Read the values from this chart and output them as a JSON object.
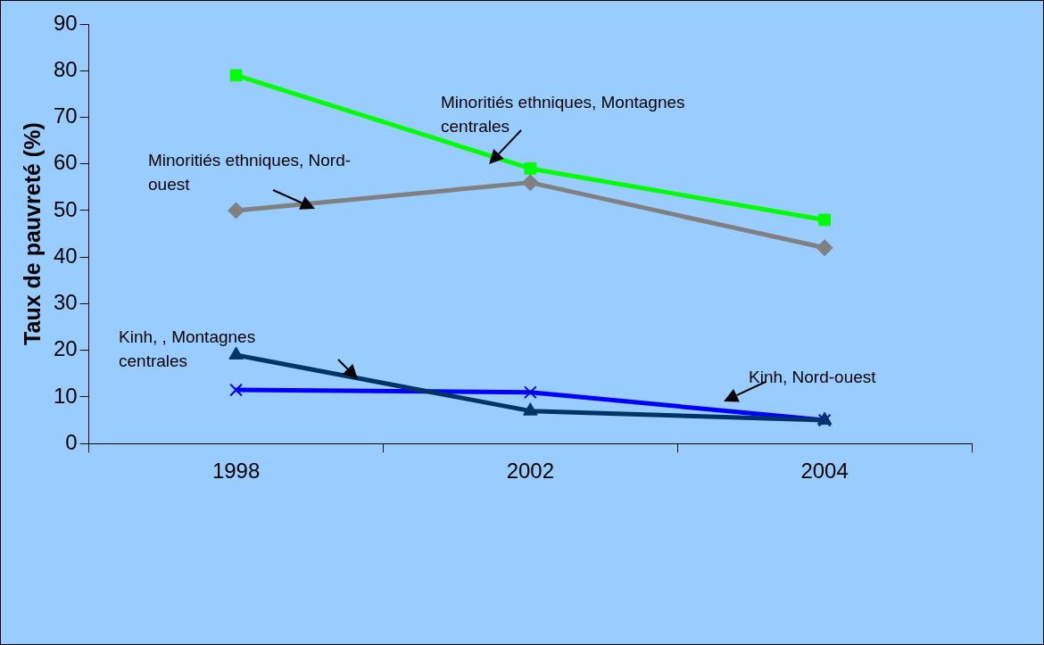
{
  "chart_data": {
    "type": "line",
    "ylabel": "Taux de pauvreté (%)",
    "categories": [
      "1998",
      "2002",
      "2004"
    ],
    "ylim": [
      0,
      90
    ],
    "yticks": [
      0,
      10,
      20,
      30,
      40,
      50,
      60,
      70,
      80,
      90
    ],
    "grid": false,
    "legend": false,
    "line_style": "solid",
    "series": [
      {
        "name": "Minoritiés ethniques, Montagnes centrales",
        "color": "#00ff00",
        "marker": "square",
        "values": [
          79,
          59,
          48
        ]
      },
      {
        "name": "Minoritiés ethniques, Nord-ouest",
        "color": "#808080",
        "marker": "diamond",
        "values": [
          50,
          56,
          42
        ]
      },
      {
        "name": "Kinh, , Montagnes centrales",
        "color": "#003366",
        "marker": "triangle",
        "values": [
          19,
          7,
          5
        ]
      },
      {
        "name": "Kinh, Nord-ouest",
        "color": "#0000ff",
        "marker": "cross",
        "values": [
          11.5,
          11,
          5
        ]
      }
    ]
  }
}
